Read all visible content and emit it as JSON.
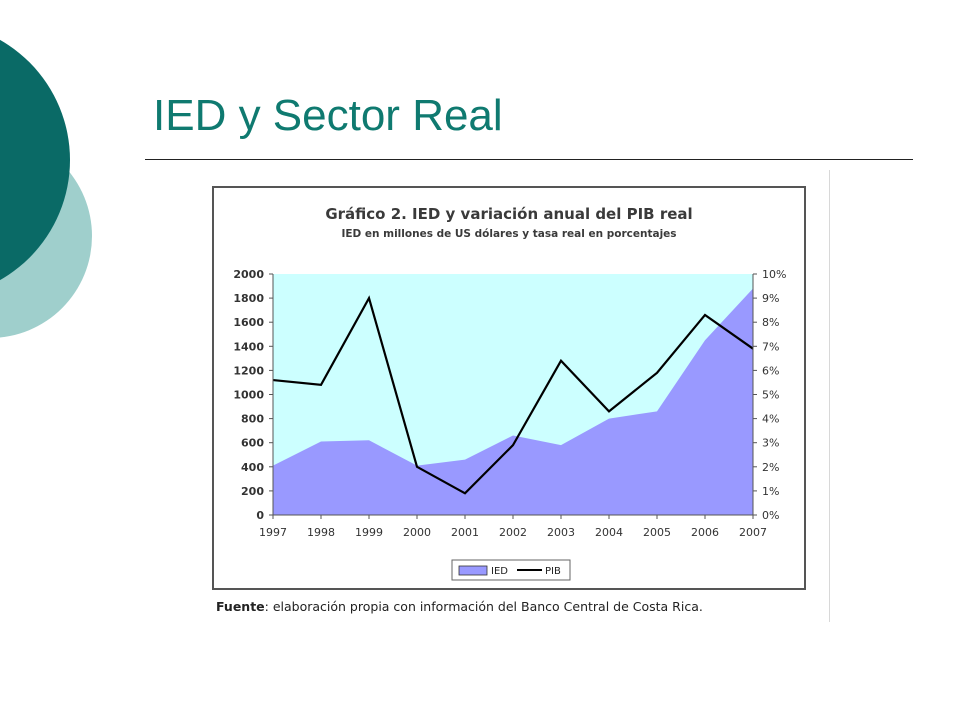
{
  "slide": {
    "title": "IED y Sector Real"
  },
  "theme": {
    "title_color": "#0f7a70",
    "circle_dark": "#0a6a66",
    "circle_light": "#9fcfcc",
    "plot_background": "#ccffff",
    "ied_fill": "#9999ff",
    "pib_line": "#000000"
  },
  "chart_data": {
    "type": "area",
    "title": "Gráfico 2. IED y variación anual del PIB real",
    "subtitle": "IED en millones de US dólares y tasa real en porcentajes",
    "categories": [
      "1997",
      "1998",
      "1999",
      "2000",
      "2001",
      "2002",
      "2003",
      "2004",
      "2005",
      "2006",
      "2007"
    ],
    "series": [
      {
        "name": "IED",
        "type": "area",
        "axis": "left",
        "values": [
          410,
          610,
          620,
          410,
          460,
          660,
          580,
          800,
          860,
          1450,
          1880
        ]
      },
      {
        "name": "PIB",
        "type": "line",
        "axis": "right",
        "values": [
          5.6,
          5.4,
          9.0,
          2.0,
          0.9,
          2.9,
          6.4,
          4.3,
          5.9,
          8.3,
          6.9
        ]
      }
    ],
    "y_left": {
      "range": [
        0,
        2000
      ],
      "ticks": [
        "0",
        "200",
        "400",
        "600",
        "800",
        "1000",
        "1200",
        "1400",
        "1600",
        "1800",
        "2000"
      ]
    },
    "y_right": {
      "range": [
        0,
        10
      ],
      "ticks": [
        "0%",
        "1%",
        "2%",
        "3%",
        "4%",
        "5%",
        "6%",
        "7%",
        "8%",
        "9%",
        "10%"
      ]
    },
    "legend": {
      "placement": "bottom-center",
      "items": [
        "IED",
        "PIB"
      ]
    },
    "grid": false
  },
  "source": {
    "label": "Fuente",
    "text": ": elaboración propia con información del Banco Central de Costa Rica."
  }
}
